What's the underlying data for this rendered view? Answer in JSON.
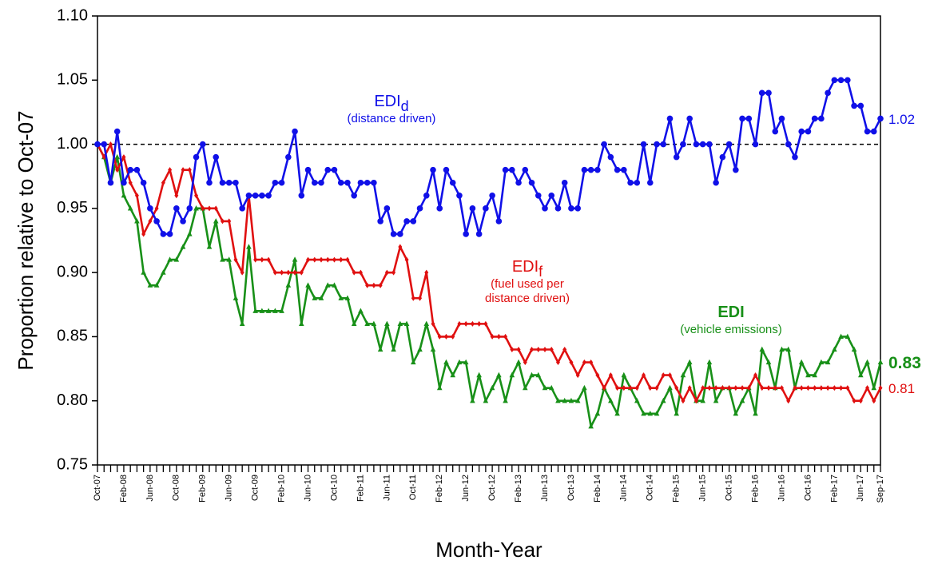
{
  "chart_data": {
    "type": "line",
    "y_label": "Proportion relative to Oct-07",
    "x_label": "Month-Year",
    "ylim": [
      0.75,
      1.1
    ],
    "yticks": [
      {
        "value": 0.75,
        "label": "0.75"
      },
      {
        "value": 0.8,
        "label": "0.80"
      },
      {
        "value": 0.85,
        "label": "0.85"
      },
      {
        "value": 0.9,
        "label": "0.90"
      },
      {
        "value": 0.95,
        "label": "0.95"
      },
      {
        "value": 1.0,
        "label": "1.00"
      },
      {
        "value": 1.05,
        "label": "1.05"
      },
      {
        "value": 1.1,
        "label": "1.10"
      }
    ],
    "reference_line": 1,
    "categories": [
      "Oct-07",
      null,
      null,
      null,
      "Feb-08",
      null,
      null,
      null,
      "Jun-08",
      null,
      null,
      null,
      "Oct-08",
      null,
      null,
      null,
      "Feb-09",
      null,
      null,
      null,
      "Jun-09",
      null,
      null,
      null,
      "Oct-09",
      null,
      null,
      null,
      "Feb-10",
      null,
      null,
      null,
      "Jun-10",
      null,
      null,
      null,
      "Oct-10",
      null,
      null,
      null,
      "Feb-11",
      null,
      null,
      null,
      "Jun-11",
      null,
      null,
      null,
      "Oct-11",
      null,
      null,
      null,
      "Feb-12",
      null,
      null,
      null,
      "Jun-12",
      null,
      null,
      null,
      "Oct-12",
      null,
      null,
      null,
      "Feb-13",
      null,
      null,
      null,
      "Jun-13",
      null,
      null,
      null,
      "Oct-13",
      null,
      null,
      null,
      "Feb-14",
      null,
      null,
      null,
      "Jun-14",
      null,
      null,
      null,
      "Oct-14",
      null,
      null,
      null,
      "Feb-15",
      null,
      null,
      null,
      "Jun-15",
      null,
      null,
      null,
      "Oct-15",
      null,
      null,
      null,
      "Feb-16",
      null,
      null,
      null,
      "Jun-16",
      null,
      null,
      null,
      "Oct-16",
      null,
      null,
      null,
      "Feb-17",
      null,
      null,
      null,
      "Jun-17",
      null,
      null,
      "Sep-17"
    ],
    "series": [
      {
        "name": "EDI",
        "subscript": "d",
        "description": [
          "(distance driven)"
        ],
        "color": "#1010e8",
        "marker": "circle",
        "values": [
          1.0,
          1.0,
          0.97,
          1.01,
          0.97,
          0.98,
          0.98,
          0.97,
          0.95,
          0.94,
          0.93,
          0.93,
          0.95,
          0.94,
          0.95,
          0.99,
          1.0,
          0.97,
          0.99,
          0.97,
          0.97,
          0.97,
          0.95,
          0.96,
          0.96,
          0.96,
          0.96,
          0.97,
          0.97,
          0.99,
          1.01,
          0.96,
          0.98,
          0.97,
          0.97,
          0.98,
          0.98,
          0.97,
          0.97,
          0.96,
          0.97,
          0.97,
          0.97,
          0.94,
          0.95,
          0.93,
          0.93,
          0.94,
          0.94,
          0.95,
          0.96,
          0.98,
          0.95,
          0.98,
          0.97,
          0.96,
          0.93,
          0.95,
          0.93,
          0.95,
          0.96,
          0.94,
          0.98,
          0.98,
          0.97,
          0.98,
          0.97,
          0.96,
          0.95,
          0.96,
          0.95,
          0.97,
          0.95,
          0.95,
          0.98,
          0.98,
          0.98,
          1.0,
          0.99,
          0.98,
          0.98,
          0.97,
          0.97,
          1.0,
          0.97,
          1.0,
          1.0,
          1.02,
          0.99,
          1.0,
          1.02,
          1.0,
          1.0,
          1.0,
          0.97,
          0.99,
          1.0,
          0.98,
          1.02,
          1.02,
          1.0,
          1.04,
          1.04,
          1.01,
          1.02,
          1.0,
          0.99,
          1.01,
          1.01,
          1.02,
          1.02,
          1.04,
          1.05,
          1.05,
          1.05,
          1.03,
          1.03,
          1.01,
          1.01,
          1.02
        ]
      },
      {
        "name": "EDI",
        "subscript": "f",
        "description": [
          "(fuel used per",
          "distance driven)"
        ],
        "color": "#e01010",
        "marker": "diamond",
        "values": [
          1.0,
          0.99,
          1.0,
          0.98,
          0.99,
          0.97,
          0.96,
          0.93,
          0.94,
          0.95,
          0.97,
          0.98,
          0.96,
          0.98,
          0.98,
          0.96,
          0.95,
          0.95,
          0.95,
          0.94,
          0.94,
          0.91,
          0.9,
          0.96,
          0.91,
          0.91,
          0.91,
          0.9,
          0.9,
          0.9,
          0.9,
          0.9,
          0.91,
          0.91,
          0.91,
          0.91,
          0.91,
          0.91,
          0.91,
          0.9,
          0.9,
          0.89,
          0.89,
          0.89,
          0.9,
          0.9,
          0.92,
          0.91,
          0.88,
          0.88,
          0.9,
          0.86,
          0.85,
          0.85,
          0.85,
          0.86,
          0.86,
          0.86,
          0.86,
          0.86,
          0.85,
          0.85,
          0.85,
          0.84,
          0.84,
          0.83,
          0.84,
          0.84,
          0.84,
          0.84,
          0.83,
          0.84,
          0.83,
          0.82,
          0.83,
          0.83,
          0.82,
          0.81,
          0.82,
          0.81,
          0.81,
          0.81,
          0.81,
          0.82,
          0.81,
          0.81,
          0.82,
          0.82,
          0.81,
          0.8,
          0.81,
          0.8,
          0.81,
          0.81,
          0.81,
          0.81,
          0.81,
          0.81,
          0.81,
          0.81,
          0.82,
          0.81,
          0.81,
          0.81,
          0.81,
          0.8,
          0.81,
          0.81,
          0.81,
          0.81,
          0.81,
          0.81,
          0.81,
          0.81,
          0.81,
          0.8,
          0.8,
          0.81,
          0.8,
          0.81
        ]
      },
      {
        "name": "EDI",
        "description": [
          "(vehicle emissions)"
        ],
        "color": "#189018",
        "marker": "triangle",
        "bold": true,
        "values": [
          1.0,
          0.99,
          0.97,
          0.99,
          0.96,
          0.95,
          0.94,
          0.9,
          0.89,
          0.89,
          0.9,
          0.91,
          0.91,
          0.92,
          0.93,
          0.95,
          0.95,
          0.92,
          0.94,
          0.91,
          0.91,
          0.88,
          0.86,
          0.92,
          0.87,
          0.87,
          0.87,
          0.87,
          0.87,
          0.89,
          0.91,
          0.86,
          0.89,
          0.88,
          0.88,
          0.89,
          0.89,
          0.88,
          0.88,
          0.86,
          0.87,
          0.86,
          0.86,
          0.84,
          0.86,
          0.84,
          0.86,
          0.86,
          0.83,
          0.84,
          0.86,
          0.84,
          0.81,
          0.83,
          0.82,
          0.83,
          0.83,
          0.8,
          0.82,
          0.8,
          0.81,
          0.82,
          0.8,
          0.82,
          0.83,
          0.81,
          0.82,
          0.82,
          0.81,
          0.81,
          0.8,
          0.8,
          0.8,
          0.8,
          0.81,
          0.78,
          0.79,
          0.81,
          0.8,
          0.79,
          0.82,
          0.81,
          0.8,
          0.79,
          0.79,
          0.79,
          0.8,
          0.81,
          0.79,
          0.82,
          0.83,
          0.8,
          0.8,
          0.83,
          0.8,
          0.81,
          0.81,
          0.79,
          0.8,
          0.81,
          0.79,
          0.84,
          0.83,
          0.81,
          0.84,
          0.84,
          0.81,
          0.83,
          0.82,
          0.82,
          0.83,
          0.83,
          0.84,
          0.85,
          0.85,
          0.84,
          0.82,
          0.83,
          0.81,
          0.83
        ]
      }
    ]
  }
}
